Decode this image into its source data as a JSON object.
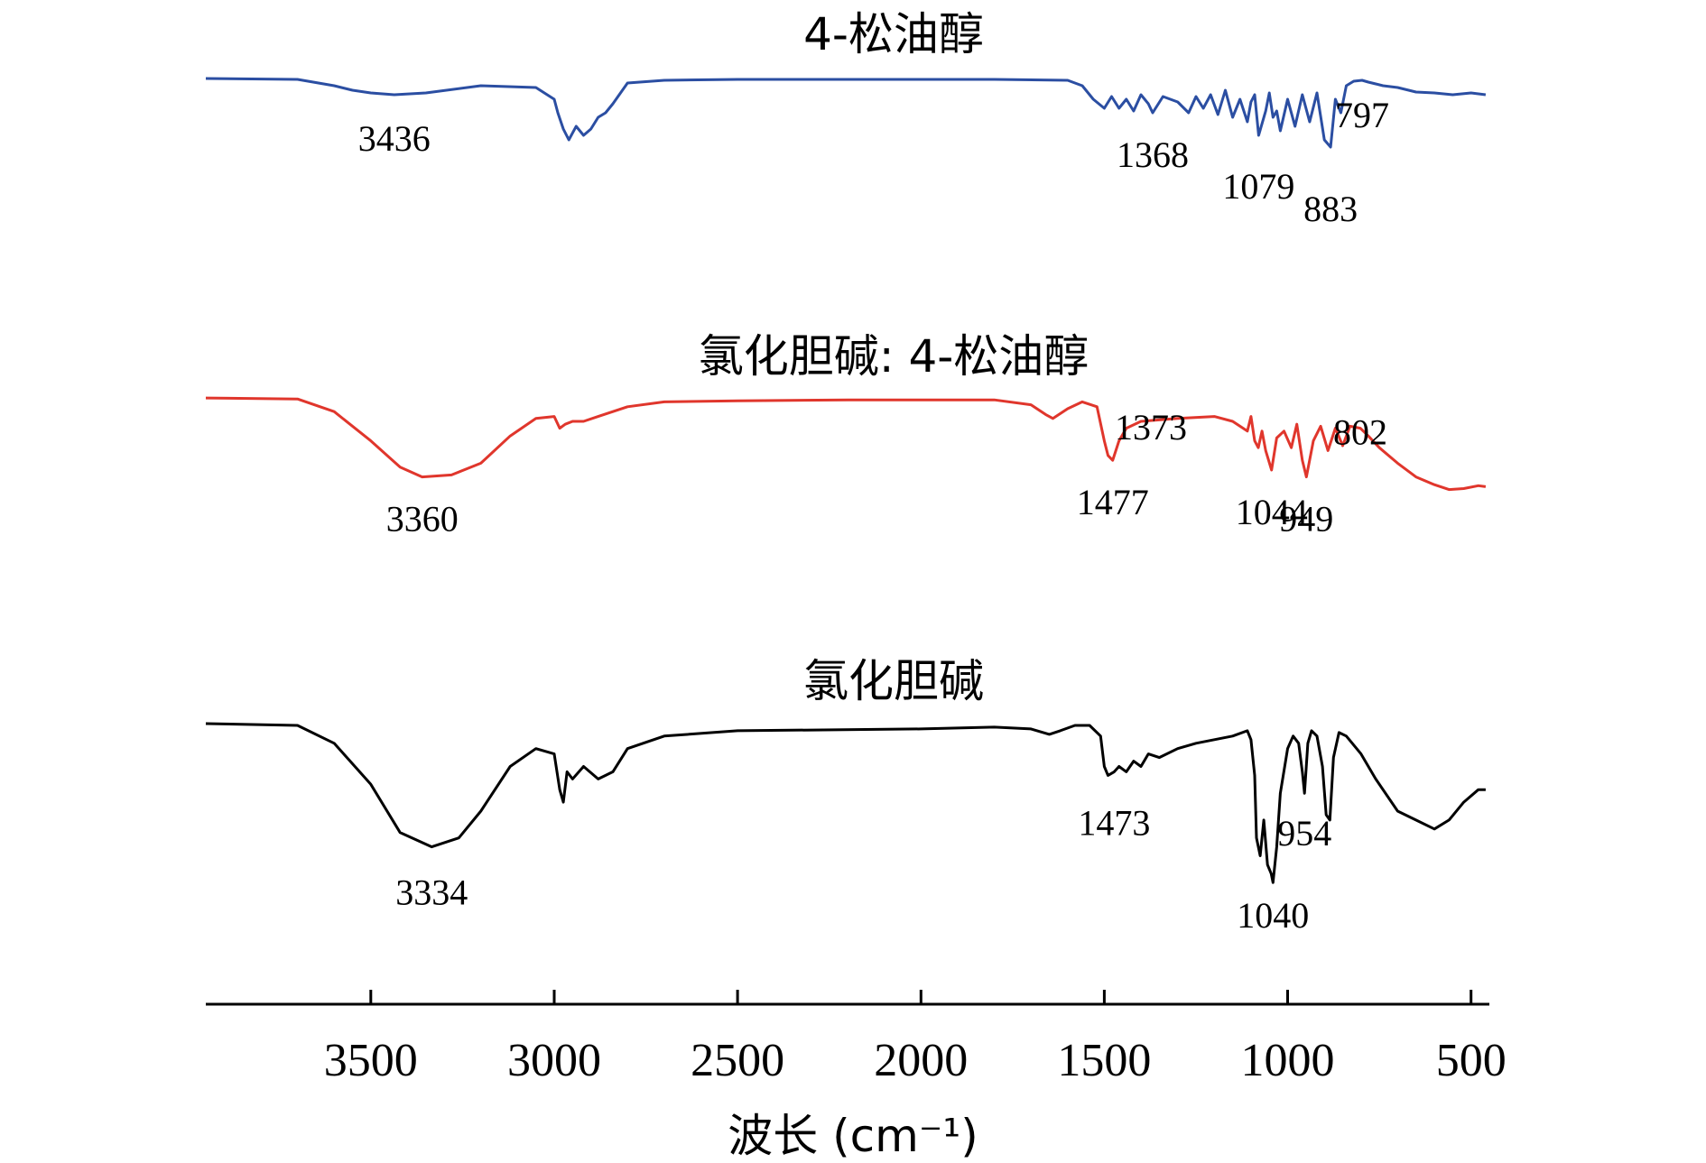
{
  "chart_data": {
    "type": "line",
    "xlabel": "波长 (cm⁻¹)",
    "ylabel": "",
    "xlim": [
      3950,
      450
    ],
    "x_reversed": true,
    "x_ticks": [
      3500,
      3000,
      2500,
      2000,
      1500,
      1000,
      500
    ],
    "grid": false,
    "legend": "none",
    "series": [
      {
        "name": "4-松油醇",
        "color": "#2b4ea2",
        "x": [
          3950,
          3700,
          3600,
          3550,
          3500,
          3436,
          3350,
          3200,
          3050,
          3000,
          2990,
          2975,
          2960,
          2940,
          2920,
          2900,
          2880,
          2860,
          2840,
          2800,
          2700,
          2500,
          2000,
          1800,
          1600,
          1560,
          1530,
          1500,
          1480,
          1460,
          1440,
          1420,
          1400,
          1380,
          1368,
          1340,
          1300,
          1270,
          1250,
          1230,
          1210,
          1190,
          1170,
          1150,
          1130,
          1110,
          1100,
          1090,
          1079,
          1060,
          1050,
          1040,
          1030,
          1020,
          1000,
          980,
          960,
          940,
          920,
          900,
          883,
          870,
          855,
          840,
          820,
          797,
          780,
          760,
          740,
          700,
          650,
          600,
          550,
          500,
          460
        ],
        "y": [
          0.98,
          0.97,
          0.9,
          0.85,
          0.82,
          0.8,
          0.82,
          0.9,
          0.88,
          0.75,
          0.6,
          0.42,
          0.3,
          0.45,
          0.35,
          0.42,
          0.55,
          0.6,
          0.7,
          0.93,
          0.96,
          0.97,
          0.97,
          0.97,
          0.96,
          0.9,
          0.75,
          0.65,
          0.78,
          0.65,
          0.75,
          0.62,
          0.8,
          0.7,
          0.6,
          0.78,
          0.72,
          0.6,
          0.78,
          0.65,
          0.8,
          0.58,
          0.85,
          0.55,
          0.75,
          0.5,
          0.72,
          0.8,
          0.35,
          0.62,
          0.82,
          0.55,
          0.62,
          0.4,
          0.75,
          0.45,
          0.8,
          0.5,
          0.82,
          0.3,
          0.22,
          0.75,
          0.6,
          0.9,
          0.95,
          0.96,
          0.94,
          0.92,
          0.9,
          0.88,
          0.83,
          0.82,
          0.8,
          0.82,
          0.8
        ],
        "peak_labels": [
          {
            "x": 3436,
            "text": "3436"
          },
          {
            "x": 1368,
            "text": "1368"
          },
          {
            "x": 1079,
            "text": "1079"
          },
          {
            "x": 883,
            "text": "883"
          },
          {
            "x": 797,
            "text": "797"
          }
        ]
      },
      {
        "name": "氯化胆碱: 4-松油醇",
        "color": "#e0362c",
        "x": [
          3950,
          3700,
          3600,
          3500,
          3420,
          3360,
          3280,
          3200,
          3120,
          3050,
          3000,
          2985,
          2970,
          2950,
          2920,
          2880,
          2800,
          2700,
          2500,
          2200,
          2000,
          1800,
          1700,
          1660,
          1640,
          1600,
          1560,
          1520,
          1500,
          1490,
          1477,
          1460,
          1440,
          1400,
          1300,
          1200,
          1150,
          1110,
          1100,
          1090,
          1080,
          1070,
          1060,
          1044,
          1030,
          1010,
          990,
          975,
          960,
          949,
          930,
          910,
          890,
          870,
          850,
          830,
          802,
          780,
          750,
          700,
          650,
          600,
          560,
          520,
          480,
          460
        ],
        "y": [
          0.99,
          0.98,
          0.85,
          0.55,
          0.28,
          0.18,
          0.2,
          0.32,
          0.6,
          0.78,
          0.8,
          0.68,
          0.72,
          0.75,
          0.75,
          0.8,
          0.9,
          0.95,
          0.96,
          0.97,
          0.97,
          0.97,
          0.92,
          0.82,
          0.78,
          0.88,
          0.95,
          0.9,
          0.55,
          0.4,
          0.35,
          0.55,
          0.68,
          0.75,
          0.78,
          0.8,
          0.75,
          0.65,
          0.8,
          0.55,
          0.48,
          0.65,
          0.45,
          0.25,
          0.58,
          0.65,
          0.48,
          0.72,
          0.35,
          0.18,
          0.55,
          0.7,
          0.45,
          0.68,
          0.5,
          0.7,
          0.68,
          0.6,
          0.48,
          0.32,
          0.18,
          0.1,
          0.05,
          0.06,
          0.09,
          0.08
        ],
        "peak_labels": [
          {
            "x": 3360,
            "text": "3360"
          },
          {
            "x": 1477,
            "text": "1477"
          },
          {
            "x": 1373,
            "text": "1373"
          },
          {
            "x": 1044,
            "text": "1044"
          },
          {
            "x": 949,
            "text": "949"
          },
          {
            "x": 802,
            "text": "802"
          }
        ]
      },
      {
        "name": "氯化胆碱",
        "color": "#000000",
        "x": [
          3950,
          3700,
          3600,
          3500,
          3420,
          3334,
          3260,
          3200,
          3120,
          3050,
          3000,
          2985,
          2975,
          2965,
          2950,
          2920,
          2880,
          2860,
          2840,
          2800,
          2700,
          2500,
          2000,
          1800,
          1700,
          1650,
          1620,
          1580,
          1540,
          1510,
          1500,
          1490,
          1473,
          1460,
          1440,
          1420,
          1400,
          1380,
          1350,
          1300,
          1250,
          1200,
          1150,
          1110,
          1100,
          1090,
          1085,
          1075,
          1065,
          1055,
          1045,
          1040,
          1030,
          1020,
          1000,
          985,
          970,
          960,
          954,
          945,
          935,
          920,
          905,
          895,
          885,
          875,
          860,
          840,
          800,
          760,
          700,
          650,
          600,
          560,
          520,
          480,
          460
        ],
        "y": [
          0.99,
          0.98,
          0.88,
          0.65,
          0.38,
          0.3,
          0.35,
          0.5,
          0.75,
          0.85,
          0.82,
          0.62,
          0.55,
          0.72,
          0.68,
          0.75,
          0.68,
          0.7,
          0.72,
          0.85,
          0.92,
          0.95,
          0.96,
          0.97,
          0.96,
          0.93,
          0.95,
          0.98,
          0.98,
          0.92,
          0.75,
          0.7,
          0.72,
          0.75,
          0.72,
          0.78,
          0.75,
          0.82,
          0.8,
          0.85,
          0.88,
          0.9,
          0.92,
          0.95,
          0.9,
          0.7,
          0.35,
          0.25,
          0.45,
          0.2,
          0.15,
          0.1,
          0.3,
          0.6,
          0.85,
          0.92,
          0.88,
          0.72,
          0.6,
          0.88,
          0.95,
          0.92,
          0.75,
          0.48,
          0.45,
          0.8,
          0.94,
          0.92,
          0.82,
          0.68,
          0.5,
          0.45,
          0.4,
          0.45,
          0.55,
          0.62,
          0.62
        ],
        "peak_labels": [
          {
            "x": 3334,
            "text": "3334"
          },
          {
            "x": 1473,
            "text": "1473"
          },
          {
            "x": 1040,
            "text": "1040"
          },
          {
            "x": 954,
            "text": "954"
          }
        ]
      }
    ]
  }
}
